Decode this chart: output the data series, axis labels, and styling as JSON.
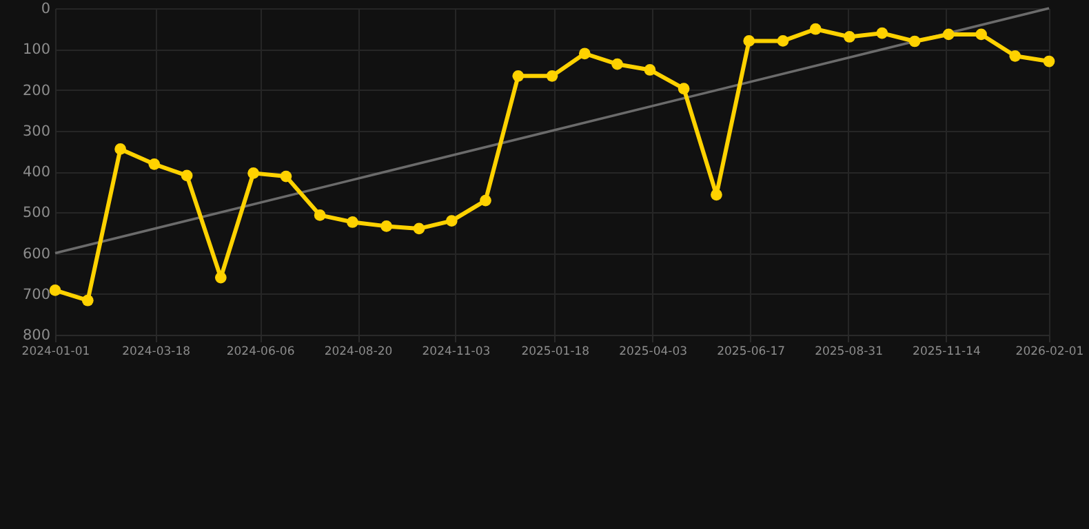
{
  "chart_data": {
    "type": "line",
    "marker": "circle",
    "line_style": "solid",
    "grid": true,
    "x": [
      "2024-01-01",
      "2024-01-26",
      "2024-02-20",
      "2024-03-17",
      "2024-04-11",
      "2024-05-07",
      "2024-06-01",
      "2024-06-26",
      "2024-07-22",
      "2024-08-16",
      "2024-09-11",
      "2024-10-06",
      "2024-10-31",
      "2024-11-26",
      "2024-12-21",
      "2025-01-16",
      "2025-02-10",
      "2025-03-07",
      "2025-04-01",
      "2025-04-27",
      "2025-05-22",
      "2025-06-16",
      "2025-07-12",
      "2025-08-06",
      "2025-09-01",
      "2025-09-26",
      "2025-10-21",
      "2025-11-16",
      "2025-12-11",
      "2026-01-06",
      "2026-02-01"
    ],
    "series": [
      {
        "color": "#ffd200",
        "values": [
          691,
          716,
          345,
          382,
          410,
          660,
          404,
          412,
          507,
          524,
          534,
          540,
          521,
          471,
          166,
          166,
          111,
          137,
          151,
          197,
          457,
          80,
          80,
          51,
          70,
          61,
          81,
          64,
          64,
          117,
          130
        ]
      },
      {
        "type": "line",
        "marker": "none",
        "color": "#6b6b6b",
        "x": [
          "2024-01-01",
          "2026-02-01"
        ],
        "values": [
          600,
          0
        ]
      }
    ],
    "xlim": [
      "2024-01-01",
      "2026-02-01"
    ],
    "xticks": [
      "2024-01-01",
      "2024-03-18",
      "2024-06-06",
      "2024-08-20",
      "2024-11-03",
      "2025-01-18",
      "2025-04-03",
      "2025-06-17",
      "2025-08-31",
      "2025-11-14",
      "2026-02-01"
    ],
    "ylim": [
      800,
      0
    ],
    "yticks": [
      0,
      100,
      200,
      300,
      400,
      500,
      600,
      700,
      800
    ]
  }
}
